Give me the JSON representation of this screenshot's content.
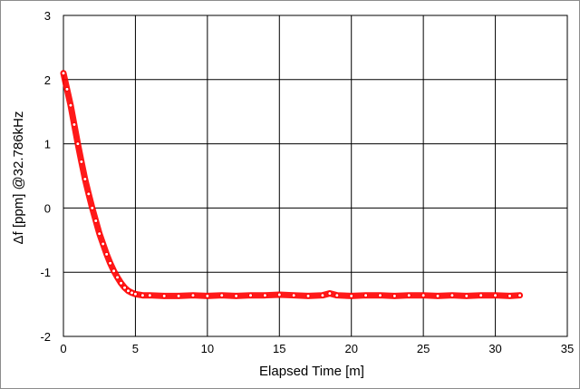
{
  "chart_data": {
    "type": "scatter",
    "title": "",
    "xlabel": "Elapsed Time [m]",
    "ylabel": "Δf [ppm] @32.786kHz",
    "xlim": [
      0,
      35
    ],
    "ylim": [
      -2,
      3
    ],
    "xticks": [
      0,
      5,
      10,
      15,
      20,
      25,
      30,
      35
    ],
    "yticks": [
      -2,
      -1,
      0,
      1,
      2,
      3
    ],
    "xtick_labels": [
      "0",
      "5",
      "10",
      "15",
      "20",
      "25",
      "30",
      "35"
    ],
    "ytick_labels": [
      "-2",
      "-1",
      "0",
      "1",
      "2",
      "3"
    ],
    "grid": true,
    "legend": "none",
    "series": [
      {
        "color": "#ff0000",
        "marker": "circle",
        "x": [
          0,
          0.25,
          0.5,
          0.75,
          1.0,
          1.25,
          1.5,
          1.75,
          2.0,
          2.25,
          2.5,
          2.75,
          3.0,
          3.25,
          3.5,
          3.75,
          4.0,
          4.25,
          4.5,
          4.75,
          5.0,
          5.5,
          6,
          7,
          8,
          9,
          10,
          11,
          12,
          13,
          14,
          15,
          16,
          17,
          18,
          18.5,
          19,
          20,
          21,
          22,
          23,
          24,
          25,
          26,
          27,
          28,
          29,
          30,
          31,
          31.7
        ],
        "y": [
          2.1,
          1.85,
          1.6,
          1.3,
          1.0,
          0.72,
          0.45,
          0.22,
          0.0,
          -0.2,
          -0.4,
          -0.56,
          -0.72,
          -0.86,
          -0.98,
          -1.08,
          -1.17,
          -1.24,
          -1.29,
          -1.32,
          -1.34,
          -1.36,
          -1.36,
          -1.37,
          -1.37,
          -1.36,
          -1.37,
          -1.36,
          -1.37,
          -1.36,
          -1.36,
          -1.35,
          -1.36,
          -1.37,
          -1.36,
          -1.33,
          -1.36,
          -1.37,
          -1.36,
          -1.36,
          -1.37,
          -1.36,
          -1.36,
          -1.37,
          -1.36,
          -1.37,
          -1.36,
          -1.36,
          -1.37,
          -1.36
        ]
      }
    ]
  }
}
